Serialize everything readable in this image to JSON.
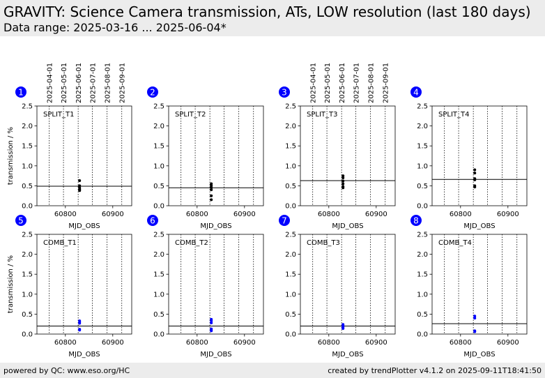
{
  "header": {
    "title": "GRAVITY: Science Camera transmission, ATs, LOW resolution (last 180 days)",
    "subtitle": "Data range: 2025-03-16 ... 2025-06-04*"
  },
  "footer": {
    "left": "powered by QC: www.eso.org/HC",
    "right": "created by trendPlotter v4.1.2 on 2025-09-11T18:41:50"
  },
  "colors": {
    "header_bg": "#ececec",
    "badge": "#0000ff",
    "split_points": "#000000",
    "comb_points": "#0000ff"
  },
  "chart_data": {
    "type": "scatter",
    "xlabel": "MJD_OBS",
    "ylabel": "transmission / %",
    "xlim": [
      60740,
      60940
    ],
    "ylim": [
      0,
      2.5
    ],
    "xticks": [
      60800,
      60900
    ],
    "yticks": [
      "0.0",
      "0.5",
      "1.0",
      "1.5",
      "2.0",
      "2.5"
    ],
    "date_ticks": [
      "2025-04-01",
      "2025-05-01",
      "2025-06-01",
      "2025-07-01",
      "2025-08-01",
      "2025-09-01"
    ],
    "date_tick_mjd": [
      60766,
      60796,
      60827,
      60857,
      60888,
      60919
    ],
    "panels": [
      {
        "badge": "1",
        "label": "SPLIT_T1",
        "color": "#000000",
        "ref": 0.49,
        "x": [
          60830,
          60830,
          60830,
          60830,
          60830,
          60830
        ],
        "y": [
          0.63,
          0.5,
          0.45,
          0.42,
          0.4,
          0.38
        ]
      },
      {
        "badge": "2",
        "label": "SPLIT_T2",
        "color": "#000000",
        "ref": 0.45,
        "x": [
          60830,
          60830,
          60830,
          60830,
          60830,
          60830
        ],
        "y": [
          0.55,
          0.5,
          0.45,
          0.4,
          0.25,
          0.15
        ]
      },
      {
        "badge": "3",
        "label": "SPLIT_T3",
        "color": "#000000",
        "ref": 0.63,
        "x": [
          60830,
          60830,
          60830,
          60830,
          60830,
          60830
        ],
        "y": [
          0.75,
          0.7,
          0.62,
          0.55,
          0.48,
          0.45
        ]
      },
      {
        "badge": "4",
        "label": "SPLIT_T4",
        "color": "#000000",
        "ref": 0.66,
        "x": [
          60830,
          60830,
          60830,
          60830,
          60830,
          60830
        ],
        "y": [
          0.9,
          0.82,
          0.68,
          0.65,
          0.5,
          0.47
        ]
      },
      {
        "badge": "5",
        "label": "COMB_T1",
        "color": "#0000ff",
        "ref": 0.2,
        "x": [
          60830,
          60830,
          60830,
          60830,
          60830
        ],
        "y": [
          0.33,
          0.3,
          0.27,
          0.12,
          0.1
        ]
      },
      {
        "badge": "6",
        "label": "COMB_T2",
        "color": "#0000ff",
        "ref": 0.2,
        "x": [
          60830,
          60830,
          60830,
          60830,
          60830,
          60830
        ],
        "y": [
          0.37,
          0.33,
          0.28,
          0.13,
          0.1,
          0.08
        ]
      },
      {
        "badge": "7",
        "label": "COMB_T3",
        "color": "#0000ff",
        "ref": 0.2,
        "x": [
          60830,
          60830,
          60830,
          60830,
          60830
        ],
        "y": [
          0.24,
          0.21,
          0.19,
          0.16,
          0.14
        ]
      },
      {
        "badge": "8",
        "label": "COMB_T4",
        "color": "#0000ff",
        "ref": 0.26,
        "x": [
          60830,
          60830,
          60830,
          60830
        ],
        "y": [
          0.45,
          0.4,
          0.08,
          0.06
        ]
      }
    ]
  }
}
